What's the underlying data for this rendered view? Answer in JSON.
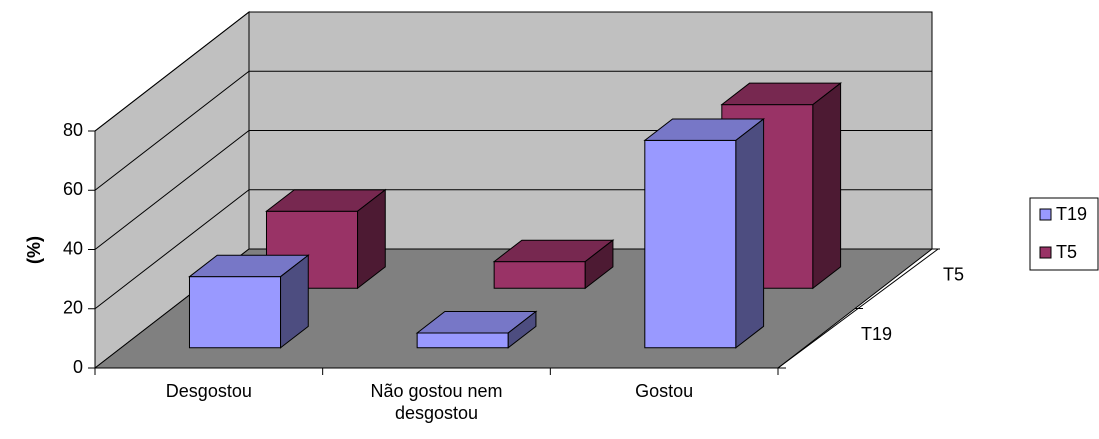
{
  "chart_data": {
    "type": "bar3d",
    "y_label": "(%)",
    "categories": [
      "Desgostou",
      "Não gostou nem desgostou",
      "Gostou"
    ],
    "series": [
      {
        "name": "T19",
        "color": "#9999ff",
        "values": [
          24,
          5,
          70
        ]
      },
      {
        "name": "T5",
        "color": "#993366",
        "values": [
          26,
          9,
          62
        ]
      }
    ],
    "ylim": [
      0,
      80
    ],
    "yticks": [
      0,
      20,
      40,
      60,
      80
    ],
    "grid": true
  }
}
